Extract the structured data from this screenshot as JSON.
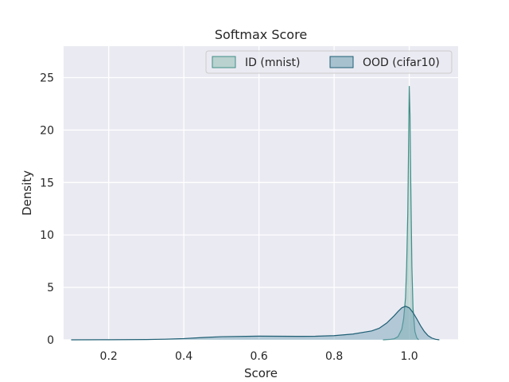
{
  "chart_data": {
    "type": "area",
    "title": "Softmax Score",
    "xlabel": "Score",
    "ylabel": "Density",
    "xlim": [
      0.08,
      1.13
    ],
    "ylim": [
      0,
      28
    ],
    "xticks": [
      0.2,
      0.4,
      0.6,
      0.8,
      1.0
    ],
    "xtick_labels": [
      "0.2",
      "0.4",
      "0.6",
      "0.8",
      "1.0"
    ],
    "yticks": [
      0,
      5,
      10,
      15,
      20,
      25
    ],
    "ytick_labels": [
      "0",
      "5",
      "10",
      "15",
      "20",
      "25"
    ],
    "grid": true,
    "legend_position": "top-right",
    "legend_columns": 2,
    "series": [
      {
        "name": "ID (mnist)",
        "fill": "#8fbcb2",
        "stroke": "#3f8f86",
        "x": [
          0.93,
          0.95,
          0.96,
          0.97,
          0.98,
          0.985,
          0.99,
          0.993,
          0.996,
          0.998,
          1.0,
          1.002,
          1.004,
          1.007,
          1.01,
          1.015,
          1.02,
          1.025
        ],
        "y": [
          0.0,
          0.05,
          0.1,
          0.3,
          1.0,
          2.0,
          4.0,
          7.0,
          12.0,
          18.0,
          24.2,
          21.5,
          15.0,
          7.0,
          3.0,
          0.8,
          0.2,
          0.0
        ]
      },
      {
        "name": "OOD (cifar10)",
        "fill": "#6f9fb3",
        "stroke": "#1f5f74",
        "x": [
          0.1,
          0.2,
          0.3,
          0.35,
          0.4,
          0.45,
          0.5,
          0.6,
          0.7,
          0.75,
          0.8,
          0.85,
          0.9,
          0.92,
          0.94,
          0.96,
          0.97,
          0.98,
          0.99,
          1.0,
          1.01,
          1.02,
          1.03,
          1.04,
          1.05,
          1.06,
          1.07,
          1.08
        ],
        "y": [
          0.0,
          0.01,
          0.03,
          0.06,
          0.12,
          0.22,
          0.3,
          0.35,
          0.33,
          0.34,
          0.4,
          0.55,
          0.85,
          1.1,
          1.6,
          2.3,
          2.7,
          3.05,
          3.2,
          3.05,
          2.6,
          2.0,
          1.35,
          0.8,
          0.4,
          0.17,
          0.05,
          0.0
        ]
      }
    ]
  }
}
